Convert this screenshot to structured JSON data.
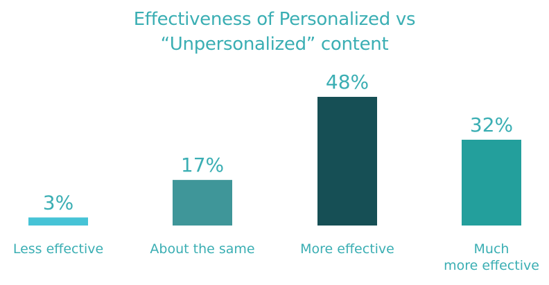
{
  "chart_data": {
    "type": "bar",
    "title_lines": [
      "Effectiveness of Personalized vs",
      "“Unpersonalized” content"
    ],
    "categories": [
      "Less effective",
      "About the same",
      "More effective",
      "Much more effective"
    ],
    "category_lines": [
      [
        "Less effective"
      ],
      [
        "About the same"
      ],
      [
        "More effective"
      ],
      [
        "Much",
        "more effective"
      ]
    ],
    "values": [
      3,
      17,
      48,
      32
    ],
    "value_labels": [
      "3%",
      "17%",
      "48%",
      "32%"
    ],
    "bar_colors": [
      "#46c3d6",
      "#3f9699",
      "#164f55",
      "#239f9c"
    ],
    "label_color": "#3aaeb3",
    "xlabel": "",
    "ylabel": "",
    "ylim": [
      0,
      48
    ],
    "grid": false,
    "legend": "none"
  }
}
